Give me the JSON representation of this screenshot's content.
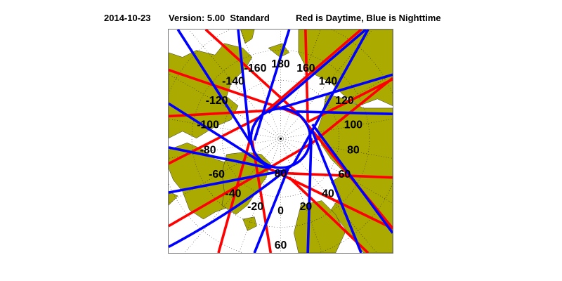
{
  "header": {
    "date": "2014-10-23",
    "version": "Version: 5.00  Standard",
    "legend_text": "Red is Daytime, Blue is Nighttime"
  },
  "map": {
    "projection": "north polar stereographic",
    "colors": {
      "land": "#aaaa00",
      "ocean": "#ffffff",
      "daytime": "#ff0000",
      "nighttime": "#0000ff",
      "grid": "#000000"
    },
    "longitude_labels": [
      "180",
      "160",
      "140",
      "120",
      "100",
      "80",
      "60",
      "40",
      "20",
      "0",
      "-20",
      "-40",
      "-60",
      "-80",
      "-100",
      "-120",
      "-140",
      "-160"
    ],
    "latitude_labels": [
      "80",
      "60"
    ]
  }
}
